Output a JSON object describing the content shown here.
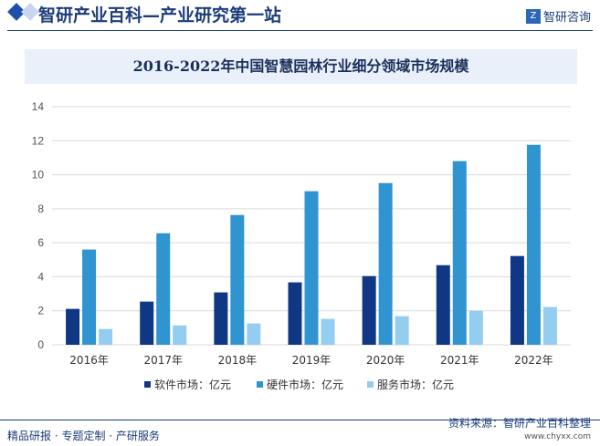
{
  "header": {
    "title": "智研产业百科—产业研究第一站",
    "logo_text": "智研咨询"
  },
  "footer": {
    "left": "精品研报 · 专题定制 · 产研服务",
    "source": "资料来源：智研产业百科整理",
    "url": "www.chyxx.com"
  },
  "colors": {
    "software": "#0f3784",
    "hardware": "#3094d1",
    "services": "#93cdf0"
  },
  "chart_data": {
    "type": "bar",
    "title": "2016-2022年中国智慧园林行业细分领域市场规模",
    "categories": [
      "2016年",
      "2017年",
      "2018年",
      "2019年",
      "2020年",
      "2021年",
      "2022年"
    ],
    "series": [
      {
        "name": "软件市场：亿元",
        "values": [
          2.11,
          2.54,
          3.08,
          3.67,
          4.04,
          4.68,
          5.22
        ]
      },
      {
        "name": "硬件市场：亿元",
        "values": [
          5.6,
          6.56,
          7.63,
          9.03,
          9.51,
          10.8,
          11.76
        ]
      },
      {
        "name": "服务市场：亿元",
        "values": [
          0.93,
          1.14,
          1.25,
          1.52,
          1.68,
          2.0,
          2.22
        ]
      }
    ],
    "ylim": [
      0,
      14
    ],
    "yticks": [
      "0",
      "2",
      "4",
      "6",
      "8",
      "10",
      "12",
      "14"
    ],
    "grid": true,
    "legend": "bottom"
  }
}
